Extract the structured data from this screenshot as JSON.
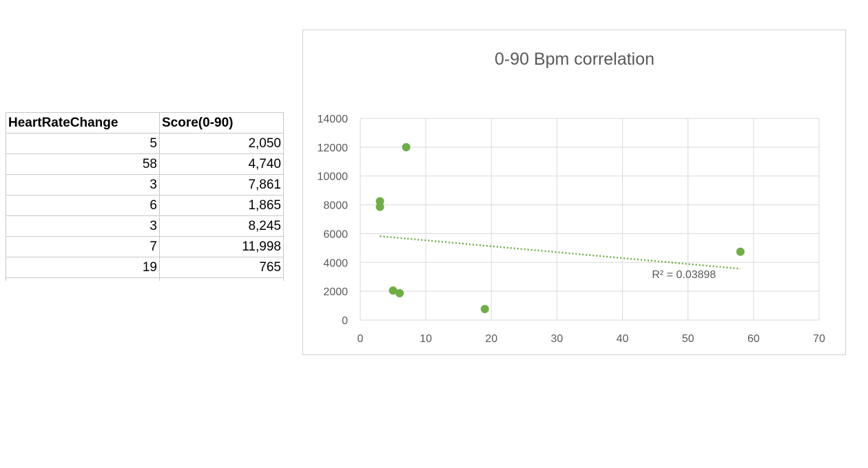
{
  "table": {
    "headers": [
      "HeartRateChange",
      "Score(0-90)"
    ],
    "rows": [
      [
        "5",
        "2,050"
      ],
      [
        "58",
        "4,740"
      ],
      [
        "3",
        "7,861"
      ],
      [
        "6",
        "1,865"
      ],
      [
        "3",
        "8,245"
      ],
      [
        "7",
        "11,998"
      ],
      [
        "19",
        "765"
      ]
    ]
  },
  "chart_data": {
    "type": "scatter",
    "title": "0-90 Bpm correlation",
    "xlabel": "",
    "ylabel": "",
    "xlim": [
      0,
      70
    ],
    "ylim": [
      0,
      14000
    ],
    "xticks": [
      "0",
      "10",
      "20",
      "30",
      "40",
      "50",
      "60",
      "70"
    ],
    "yticks": [
      "0",
      "2000",
      "4000",
      "6000",
      "8000",
      "10000",
      "12000",
      "14000"
    ],
    "grid": true,
    "legend": "none",
    "series": [
      {
        "x": [
          5,
          58,
          3,
          6,
          3,
          7,
          19
        ],
        "y": [
          2050,
          4740,
          7861,
          1865,
          8245,
          11998,
          765
        ],
        "color": "#70ad47"
      }
    ],
    "trendline": {
      "type": "linear",
      "color": "#70ad47",
      "style": "dotted",
      "x": [
        3,
        58
      ],
      "y": [
        5820,
        3560
      ],
      "label": "R² = 0.03898"
    }
  }
}
